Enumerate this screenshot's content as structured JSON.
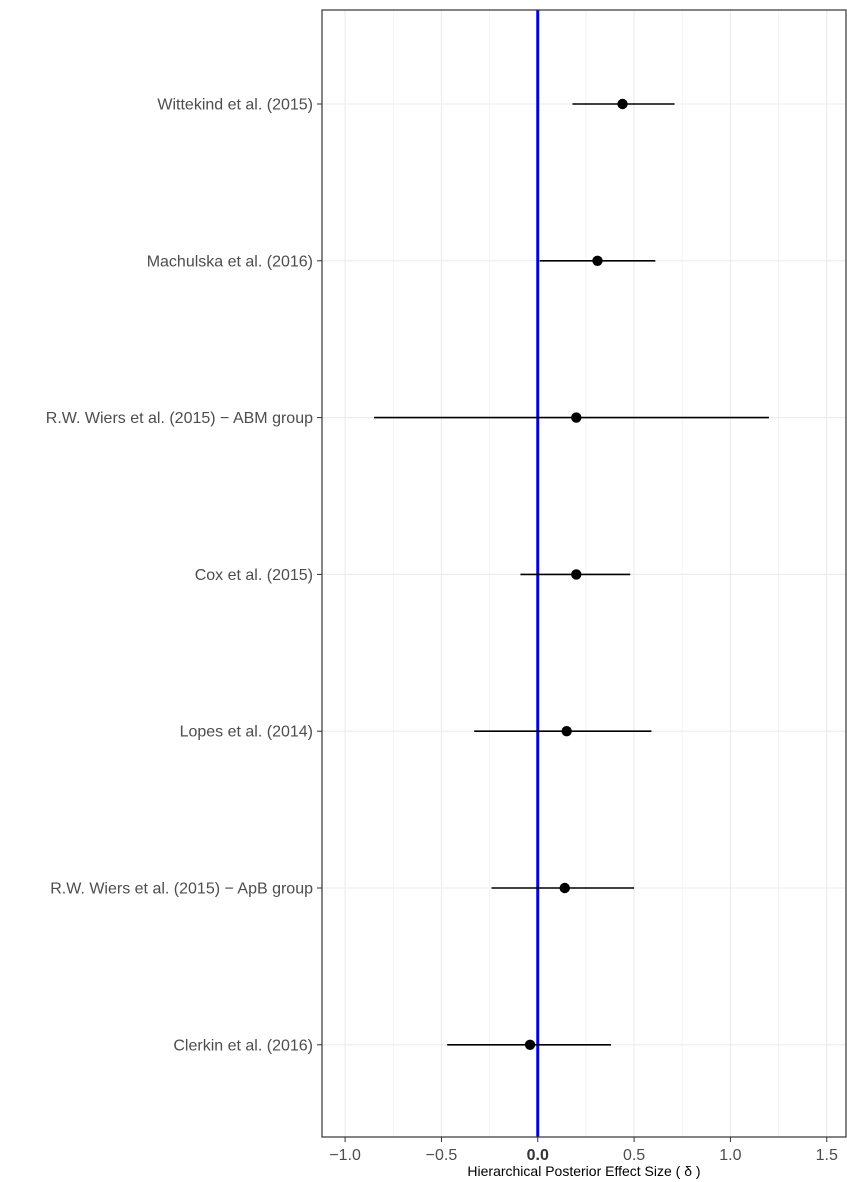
{
  "chart_data": {
    "type": "forest",
    "title": "",
    "xlabel": "Hierarchical Posterior Effect Size ( δ )",
    "ylabel": "",
    "xlim": [
      -1.12,
      1.6
    ],
    "xticks": [
      -1.0,
      -0.5,
      0.0,
      0.5,
      1.0,
      1.5
    ],
    "xtick_labels": [
      "−1.0",
      "−0.5",
      "0.0",
      "0.5",
      "1.0",
      "1.5"
    ],
    "reference_line": {
      "x": 0.0,
      "color": "#0000ee"
    },
    "grid": true,
    "legend": "none",
    "studies": [
      {
        "label": "Wittekind et al. (2015)",
        "estimate": 0.44,
        "lower": 0.18,
        "upper": 0.71
      },
      {
        "label": "Machulska et al. (2016)",
        "estimate": 0.31,
        "lower": 0.01,
        "upper": 0.61
      },
      {
        "label": "R.W. Wiers et al. (2015) − ABM group",
        "estimate": 0.2,
        "lower": -0.85,
        "upper": 1.2
      },
      {
        "label": "Cox et al. (2015)",
        "estimate": 0.2,
        "lower": -0.09,
        "upper": 0.48
      },
      {
        "label": "Lopes et al. (2014)",
        "estimate": 0.15,
        "lower": -0.33,
        "upper": 0.59
      },
      {
        "label": "R.W. Wiers et al. (2015) − ApB group",
        "estimate": 0.14,
        "lower": -0.24,
        "upper": 0.5
      },
      {
        "label": "Clerkin et al. (2016)",
        "estimate": -0.04,
        "lower": -0.47,
        "upper": 0.38
      }
    ]
  }
}
